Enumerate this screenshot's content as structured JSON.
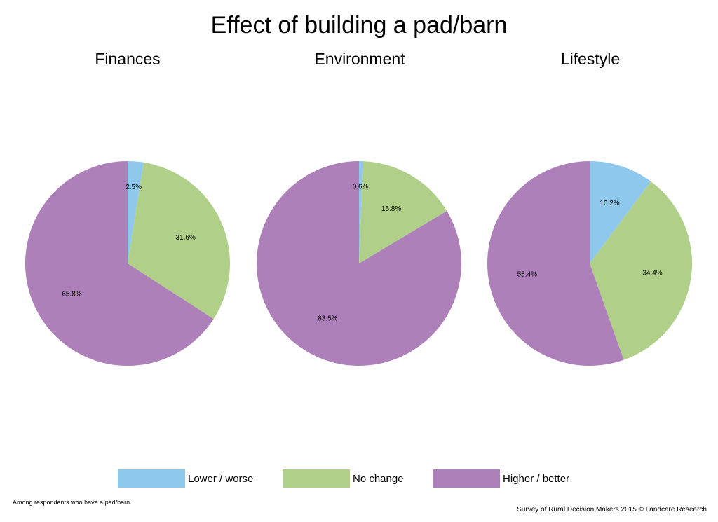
{
  "title": "Effect of building a pad/barn",
  "colors": {
    "lower": "#8ec8ec",
    "no_change": "#b0d08a",
    "higher": "#ad80b9"
  },
  "legend": [
    {
      "key": "lower",
      "label": "Lower / worse"
    },
    {
      "key": "no_change",
      "label": "No change"
    },
    {
      "key": "higher",
      "label": "Higher / better"
    }
  ],
  "footnote": "Among respondents who have a pad/barn.",
  "credit": "Survey of Rural Decision Makers 2015 © Landcare Research",
  "chart_data": [
    {
      "type": "pie",
      "title": "Finances",
      "categories": [
        "Lower / worse",
        "No change",
        "Higher / better"
      ],
      "values": [
        2.5,
        31.6,
        65.8
      ],
      "labels": [
        "2.5%",
        "31.6%",
        "65.8%"
      ]
    },
    {
      "type": "pie",
      "title": "Environment",
      "categories": [
        "Lower / worse",
        "No change",
        "Higher / better"
      ],
      "values": [
        0.6,
        15.8,
        83.5
      ],
      "labels": [
        "0.6%",
        "15.8%",
        "83.5%"
      ]
    },
    {
      "type": "pie",
      "title": "Lifestyle",
      "categories": [
        "Lower / worse",
        "No change",
        "Higher / better"
      ],
      "values": [
        10.2,
        34.4,
        55.4
      ],
      "labels": [
        "10.2%",
        "34.4%",
        "55.4%"
      ]
    }
  ]
}
